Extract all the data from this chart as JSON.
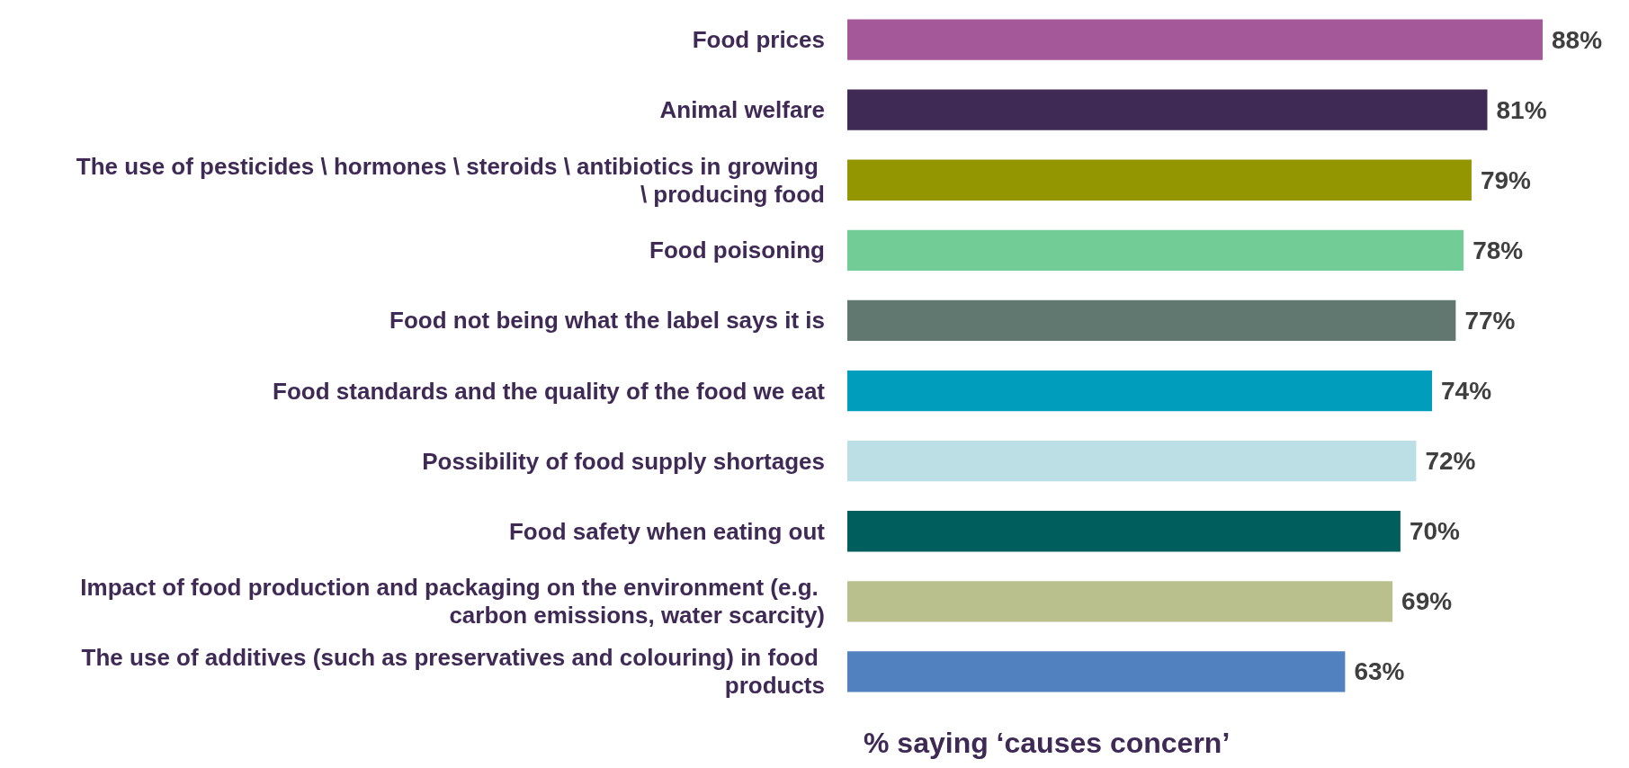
{
  "chart_data": {
    "type": "bar",
    "orientation": "horizontal",
    "xlabel": "% saying ‘causes concern’",
    "categories": [
      "Food prices",
      "Animal welfare",
      "The use of pesticides \\ hormones \\ steroids \\ antibiotics in growing \\ producing food",
      "Food poisoning",
      "Food not being what the label says it is",
      "Food standards and the quality of the food we eat",
      "Possibility of food supply shortages",
      "Food safety when eating out",
      "Impact of food production and packaging on the environment (e.g. carbon emissions, water scarcity)",
      "The use of additives (such as preservatives and colouring) in food products"
    ],
    "values": [
      88,
      81,
      79,
      78,
      77,
      74,
      72,
      70,
      69,
      63
    ],
    "value_labels": [
      "88%",
      "81%",
      "79%",
      "78%",
      "77%",
      "74%",
      "72%",
      "70%",
      "69%",
      "63%"
    ],
    "colors": [
      "#a4589a",
      "#3f2a56",
      "#939600",
      "#72cc96",
      "#60786f",
      "#009ebd",
      "#bcdfe6",
      "#005f5d",
      "#babf8e",
      "#5182bf"
    ]
  }
}
